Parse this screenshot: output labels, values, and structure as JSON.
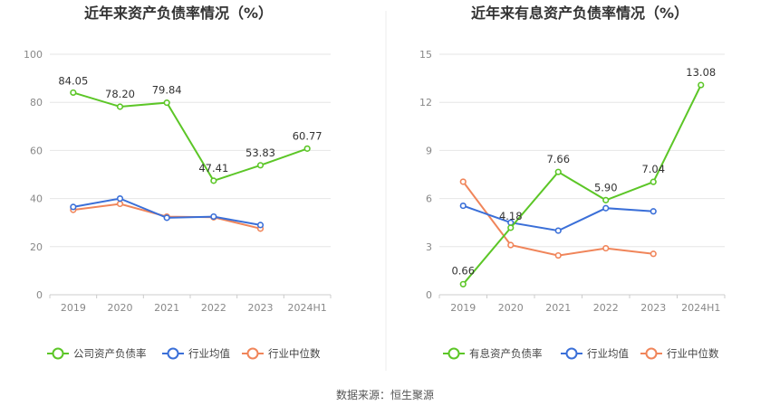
{
  "source_text": "数据来源：恒生聚源",
  "chart_data": [
    {
      "type": "line",
      "title": "近年来资产负债率情况（%）",
      "categories": [
        "2019",
        "2020",
        "2021",
        "2022",
        "2023",
        "2024H1"
      ],
      "ylim": [
        0,
        100
      ],
      "yticks": [
        0,
        20,
        40,
        60,
        80,
        100
      ],
      "series": [
        {
          "name": "公司资产负债率",
          "color": "#5cc627",
          "values": [
            84.05,
            78.2,
            79.84,
            47.41,
            53.83,
            60.77
          ],
          "labels": [
            "84.05",
            "78.20",
            "79.84",
            "47.41",
            "53.83",
            "60.77"
          ]
        },
        {
          "name": "行业均值",
          "color": "#3a6fd8",
          "values": [
            36.5,
            40.0,
            32.0,
            32.5,
            29.0,
            null
          ]
        },
        {
          "name": "行业中位数",
          "color": "#f0855a",
          "values": [
            35.3,
            37.8,
            32.5,
            32.2,
            27.5,
            null
          ]
        }
      ],
      "legend": [
        "公司资产负债率",
        "行业均值",
        "行业中位数"
      ]
    },
    {
      "type": "line",
      "title": "近年来有息资产负债率情况（%）",
      "categories": [
        "2019",
        "2020",
        "2021",
        "2022",
        "2023",
        "2024H1"
      ],
      "ylim": [
        0,
        15
      ],
      "yticks": [
        0,
        3,
        6,
        9,
        12,
        15
      ],
      "series": [
        {
          "name": "有息资产负债率",
          "color": "#5cc627",
          "values": [
            0.66,
            4.18,
            7.66,
            5.9,
            7.04,
            13.08
          ],
          "labels": [
            "0.66",
            "4.18",
            "7.66",
            "5.90",
            "7.04",
            "13.08"
          ]
        },
        {
          "name": "行业均值",
          "color": "#3a6fd8",
          "values": [
            5.55,
            4.5,
            4.0,
            5.4,
            5.2,
            null
          ]
        },
        {
          "name": "行业中位数",
          "color": "#f0855a",
          "values": [
            7.05,
            3.1,
            2.45,
            2.9,
            2.55,
            null
          ]
        }
      ],
      "legend": [
        "有息资产负债率",
        "行业均值",
        "行业中位数"
      ]
    }
  ]
}
